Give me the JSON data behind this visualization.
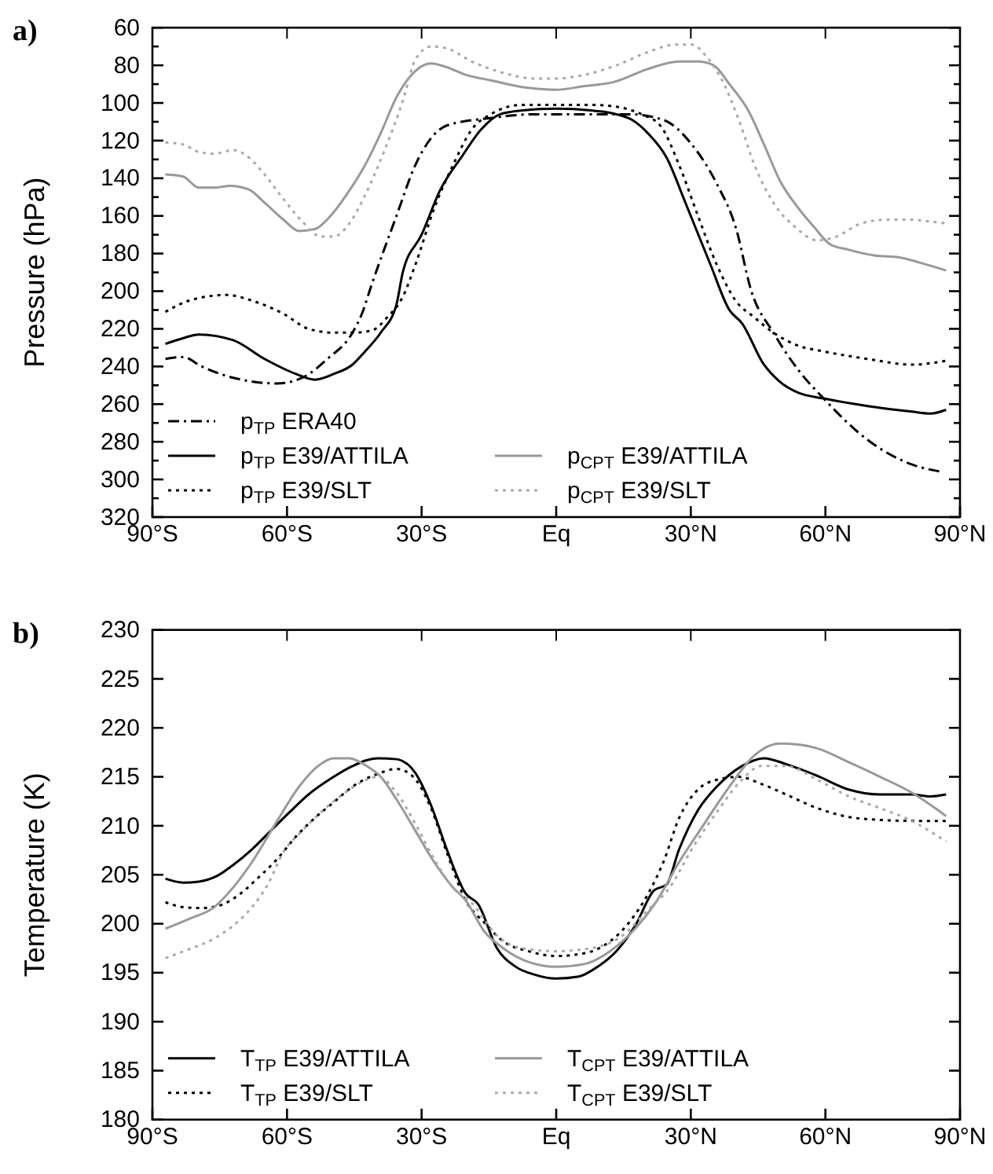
{
  "chart_data": [
    {
      "type": "line",
      "title": "a)",
      "ylabel": "Pressure (hPa)",
      "ylim": [
        320,
        60
      ],
      "yticks": [
        60,
        {
          "value": 70,
          "label": null
        },
        80,
        {
          "value": 90,
          "label": null
        },
        100,
        {
          "value": 110,
          "label": null
        },
        120,
        {
          "value": 130,
          "label": null
        },
        140,
        {
          "value": 150,
          "label": null
        },
        160,
        {
          "value": 170,
          "label": null
        },
        180,
        {
          "value": 190,
          "label": null
        },
        200,
        {
          "value": 210,
          "label": null
        },
        220,
        {
          "value": 230,
          "label": null
        },
        240,
        {
          "value": 250,
          "label": null
        },
        260,
        {
          "value": 270,
          "label": null
        },
        280,
        {
          "value": 290,
          "label": null
        },
        300,
        {
          "value": 310,
          "label": null
        },
        320
      ],
      "xlim": [
        -90,
        90
      ],
      "xticks": [
        {
          "value": -90,
          "label": "90°S"
        },
        {
          "value": -60,
          "label": "60°S"
        },
        {
          "value": -30,
          "label": "30°S"
        },
        {
          "value": 0,
          "label": "Eq"
        },
        {
          "value": 30,
          "label": "30°N"
        },
        {
          "value": 60,
          "label": "60°N"
        },
        {
          "value": 90,
          "label": "90°N"
        }
      ],
      "grid": false,
      "legend": "bottom left",
      "series": [
        {
          "name": "p$_{TP}$ ERA40",
          "color": "#000000",
          "line_style": "dashdot",
          "x": [
            -87.1,
            -83.2,
            -79,
            -72,
            -62.2,
            -56.6,
            -51,
            -45.4,
            -43.3,
            -41.2,
            -35.6,
            -31.4,
            -24.4,
            -14.6,
            -4.8,
            9,
            16.2,
            23.9,
            30.2,
            35.8,
            40,
            43.5,
            48.4,
            54,
            59.6,
            69.4,
            79.2,
            86
          ],
          "values": [
            236,
            235,
            240,
            246,
            249,
            246,
            236,
            222,
            212,
            197,
            160,
            133,
            112,
            108,
            106,
            106,
            106,
            109,
            122,
            143,
            166,
            200,
            222,
            242,
            257,
            279,
            292,
            296
          ]
        },
        {
          "name": "p$_{TP}$ E39/ATTILA",
          "color": "#000000",
          "line_style": "solid",
          "x": [
            -87.1,
            -83.2,
            -79.7,
            -72,
            -65,
            -58,
            -53.8,
            -49.6,
            -45.4,
            -42.6,
            -39.1,
            -35.6,
            -34.2,
            -30,
            -25.8,
            -20.9,
            -16.7,
            -12.5,
            -7.6,
            0,
            7.8,
            13.4,
            16.9,
            20.4,
            24.6,
            28.8,
            34.4,
            38.6,
            41.4,
            46.3,
            49.8,
            54,
            59.6,
            69.4,
            79.2,
            83.4,
            86.9
          ],
          "values": [
            228,
            225,
            223,
            226,
            236,
            244,
            247,
            244,
            239,
            232,
            222,
            207,
            190,
            170,
            146,
            128,
            114,
            106,
            104,
            103,
            104,
            106,
            109,
            116,
            129,
            153,
            186,
            210,
            217,
            239,
            248,
            254,
            257,
            261,
            264,
            265,
            263
          ]
        },
        {
          "name": "p$_{TP}$ E39/SLT",
          "color": "#000000",
          "line_style": "dotted",
          "x": [
            -87.1,
            -81.8,
            -73.4,
            -67.8,
            -60.8,
            -55.2,
            -49.6,
            -45.4,
            -41.2,
            -37.7,
            -34.2,
            -31.4,
            -27.2,
            -23,
            -18.8,
            -14.6,
            -7.6,
            0,
            7.8,
            13.4,
            19,
            23.2,
            27.4,
            31.6,
            35.8,
            40,
            44.2,
            48.4,
            54,
            59.6,
            69.4,
            79.2,
            86.9
          ],
          "values": [
            211,
            205,
            202,
            205,
            212,
            220,
            222,
            222,
            221,
            214,
            203,
            186,
            156,
            133,
            114,
            106,
            101,
            101,
            101,
            102,
            106,
            112,
            133,
            160,
            186,
            205,
            214,
            222,
            229,
            232,
            236,
            239,
            237
          ]
        },
        {
          "name": "p$_{CPT}$ E39/ATTILA",
          "color": "#999999",
          "line_style": "solid",
          "x": [
            -87.1,
            -83.2,
            -79.7,
            -76.2,
            -72.7,
            -68.5,
            -65,
            -60.8,
            -57.3,
            -53.8,
            -50.3,
            -46.8,
            -42.6,
            -39.1,
            -35.6,
            -31.4,
            -27.9,
            -24.4,
            -20.2,
            -14.6,
            -6.2,
            0,
            6.4,
            12.7,
            20.4,
            27.4,
            31.6,
            35.1,
            38.6,
            42.8,
            46.3,
            49.8,
            54,
            57.5,
            61,
            65.2,
            70.8,
            76.4,
            81.3,
            86.9
          ],
          "values": [
            138,
            139,
            145,
            145,
            144,
            146,
            153,
            162,
            168,
            167,
            160,
            149,
            133,
            116,
            97,
            83,
            79,
            81,
            85,
            88,
            92,
            93,
            91,
            89,
            82,
            78,
            78,
            80,
            90,
            104,
            122,
            141,
            156,
            166,
            175,
            178,
            181,
            182,
            185,
            189
          ]
        },
        {
          "name": "p$_{CPT}$ E39/SLT",
          "color": "#aaaaaa",
          "line_style": "dotted",
          "x": [
            -87.1,
            -83.2,
            -79.7,
            -76.2,
            -72,
            -68.5,
            -65,
            -60.8,
            -56.6,
            -52.4,
            -49.6,
            -46.1,
            -42.6,
            -38.4,
            -34.2,
            -31.4,
            -27.9,
            -24.4,
            -18.8,
            -11.8,
            -4.8,
            0,
            6.4,
            13.4,
            20.4,
            26.7,
            30.2,
            33.7,
            37.2,
            40.7,
            44.2,
            48.4,
            53.3,
            58.2,
            62.4,
            68,
            73.6,
            79.2,
            83.4,
            86.9
          ],
          "values": [
            121,
            122,
            126,
            127,
            125,
            129,
            138,
            151,
            163,
            171,
            171,
            164,
            149,
            126,
            99,
            77,
            70,
            71,
            78,
            84,
            87,
            87,
            85,
            80,
            73,
            69,
            69,
            76,
            89,
            109,
            133,
            153,
            166,
            173,
            171,
            164,
            162,
            162,
            163,
            164
          ]
        }
      ]
    },
    {
      "type": "line",
      "title": "b)",
      "ylabel": "Temperature (K)",
      "ylim": [
        180,
        230
      ],
      "yticks": [
        180,
        185,
        190,
        195,
        200,
        205,
        210,
        215,
        220,
        225,
        230
      ],
      "xlim": [
        -90,
        90
      ],
      "xticks": [
        {
          "value": -90,
          "label": "90°S"
        },
        {
          "value": -60,
          "label": "60°S"
        },
        {
          "value": -30,
          "label": "30°S"
        },
        {
          "value": 0,
          "label": "Eq"
        },
        {
          "value": 30,
          "label": "30°N"
        },
        {
          "value": 60,
          "label": "60°N"
        },
        {
          "value": 90,
          "label": "90°N"
        }
      ],
      "grid": false,
      "legend": "bottom left",
      "series": [
        {
          "name": "T$_{TP}$ E39/ATTILA",
          "color": "#000000",
          "line_style": "solid",
          "x": [
            -87.1,
            -83.2,
            -79.7,
            -75.5,
            -72,
            -67.8,
            -63.6,
            -59.4,
            -55.2,
            -50.3,
            -45.4,
            -39.8,
            -35.6,
            -31.4,
            -27.9,
            -24.4,
            -20.2,
            -17.4,
            -13.2,
            -9,
            -4.8,
            0,
            5,
            9.2,
            13.4,
            17.6,
            21.8,
            24.6,
            27.4,
            31.6,
            35.8,
            41.4,
            46.3,
            51.2,
            58.2,
            65.2,
            72.2,
            79.2,
            83.4,
            86.9
          ],
          "values": [
            204.6,
            204.2,
            204.3,
            204.9,
            206,
            207.6,
            209.5,
            211.4,
            213.2,
            214.8,
            216.1,
            216.9,
            216.8,
            215.4,
            212.1,
            207.6,
            203.1,
            202,
            197.5,
            195.6,
            194.8,
            194.4,
            194.6,
            195.6,
            197.2,
            199.8,
            203.4,
            204,
            207.6,
            211.6,
            214,
            216.1,
            216.9,
            216.3,
            215.1,
            213.7,
            213.2,
            213.2,
            213,
            213.2
          ]
        },
        {
          "name": "T$_{TP}$ E39/SLT",
          "color": "#000000",
          "line_style": "dotted",
          "x": [
            -87.1,
            -83.2,
            -79,
            -74.8,
            -70.6,
            -66.4,
            -62.2,
            -58,
            -53.8,
            -49.6,
            -45.4,
            -39.8,
            -35.6,
            -32.1,
            -27.9,
            -24.4,
            -20.2,
            -16,
            -11.8,
            -6.2,
            0,
            6.4,
            12,
            16.2,
            20.4,
            23.9,
            27.4,
            31.6,
            35.8,
            40.7,
            45.6,
            51.2,
            58.2,
            65.2,
            72.2,
            79.2,
            86.9
          ],
          "values": [
            202.2,
            201.7,
            201.6,
            201.9,
            203,
            204.7,
            206.6,
            208.9,
            210.8,
            212.4,
            214,
            215.3,
            215.8,
            215.1,
            211.8,
            207.3,
            202.4,
            200.1,
            198.2,
            197.2,
            196.7,
            197,
            198.2,
            200.1,
            203,
            206.3,
            210.8,
            213.7,
            214.7,
            215,
            214.3,
            213.2,
            211.8,
            210.9,
            210.6,
            210.5,
            210.5
          ]
        },
        {
          "name": "T$_{CPT}$ E39/ATTILA",
          "color": "#999999",
          "line_style": "solid",
          "x": [
            -87.1,
            -81.8,
            -76.2,
            -72,
            -67.8,
            -62.2,
            -57.3,
            -53.1,
            -49.6,
            -46.1,
            -42.6,
            -39.1,
            -35.6,
            -31.4,
            -27.2,
            -23,
            -20.2,
            -16,
            -11.8,
            -6.2,
            0,
            6.4,
            12,
            17.6,
            22.5,
            27.4,
            33,
            38.6,
            44.2,
            49.8,
            54,
            58.2,
            65.2,
            72.2,
            79.2,
            86.9
          ],
          "values": [
            199.5,
            200.5,
            201.7,
            203.7,
            206.3,
            210.5,
            214,
            216.1,
            216.9,
            216.9,
            216.2,
            215,
            212.7,
            209.5,
            206.3,
            203.7,
            202.4,
            199.2,
            197.5,
            196.1,
            195.6,
            195.9,
            197.2,
            199.5,
            202.4,
            206.3,
            210.2,
            214,
            217.2,
            218.4,
            218.3,
            217.9,
            216.5,
            215,
            213.4,
            211
          ]
        },
        {
          "name": "T$_{CPT}$ E39/SLT",
          "color": "#aaaaaa",
          "line_style": "dotted",
          "x": [
            -87.1,
            -81.8,
            -76.2,
            -72,
            -67.8,
            -64.3,
            -60.8,
            -56.6,
            -52.4,
            -48.2,
            -44,
            -39.8,
            -35.6,
            -31.4,
            -27.2,
            -23,
            -18.8,
            -13.2,
            -7.6,
            0,
            7.8,
            14.8,
            20.4,
            25.3,
            30.2,
            35.8,
            41.4,
            45.6,
            51.2,
            58.2,
            65.2,
            72.2,
            79.2,
            86.9
          ],
          "values": [
            196.5,
            197.4,
            198.5,
            199.8,
            201.7,
            204,
            207.3,
            209.5,
            211.4,
            213,
            214.3,
            215,
            213.4,
            210.2,
            206.6,
            203.7,
            202.1,
            198.8,
            197.5,
            197.2,
            197.5,
            198.8,
            201.4,
            203.7,
            207.6,
            211.4,
            214.7,
            216.1,
            216.1,
            214.7,
            213,
            211.8,
            210.5,
            208.4
          ]
        }
      ]
    }
  ]
}
